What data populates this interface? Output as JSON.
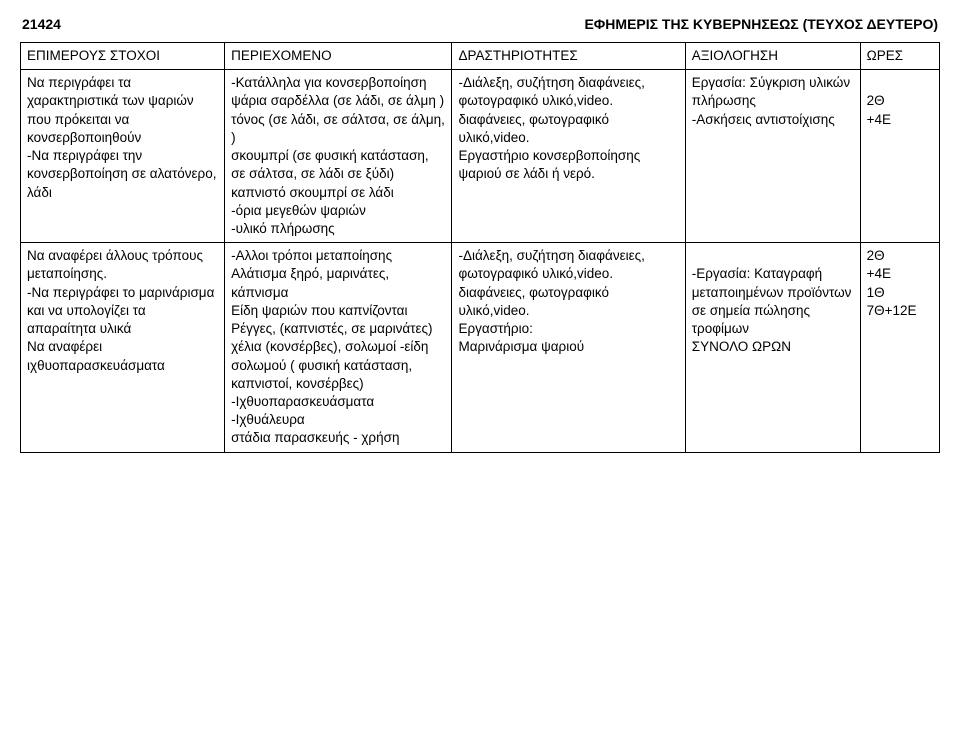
{
  "header": {
    "page_number": "21424",
    "title": "ΕΦΗΜΕΡΙΣ ΤΗΣ ΚΥΒΕΡΝΗΣΕΩΣ (ΤΕΥΧΟΣ ΔΕΥΤΕΡΟ)"
  },
  "table": {
    "columns": [
      "ΕΠΙΜΕΡΟΥΣ ΣΤΟΧΟΙ",
      "ΠΕΡΙΕΧΟΜΕΝΟ",
      "ΔΡΑΣΤΗΡΙΟΤΗΤΕΣ",
      "ΑΞΙΟΛΟΓΗΣΗ",
      "ΩΡΕΣ"
    ],
    "rows": [
      {
        "goals": "Να περιγράφει τα χαρακτηριστικά των ψαριών που πρόκειται να κονσερβοποιηθούν\n-Να περιγράφει την κονσερβοποίηση σε αλατόνερο, λάδι",
        "content": "-Κατάλληλα για κονσερβοποίηση ψάρια σαρδέλλα (σε λάδι, σε άλμη )\nτόνος (σε λάδι, σε σάλτσα, σε άλμη, )\nσκουμπρί (σε φυσική κατάσταση, σε σάλτσα, σε λάδι σε ξύδι)\nκαπνιστό σκουμπρί σε λάδι\n-όρια μεγεθών ψαριών\n-υλικό πλήρωσης",
        "activities": "-Διάλεξη, συζήτηση διαφάνειες, φωτογραφικό υλικό,video.\nδιαφάνειες, φωτογραφικό υλικό,video.\nΕργαστήριο κονσερβοποίησης ψαριού σε λάδι ή νερό.",
        "assessment": "Εργασία: Σύγκριση υλικών πλήρωσης\n-Ασκήσεις αντιστοίχισης",
        "hours": "\n2Θ\n+4Ε"
      },
      {
        "goals": "Να αναφέρει άλλους τρόπους μεταποίησης.\n-Να περιγράφει το μαρινάρισμα και να υπολογίζει τα απαραίτητα υλικά\nΝα αναφέρει ιχθυοπαρασκευάσματα",
        "content": "-Αλλοι τρόποι μεταποίησης\nΑλάτισμα ξηρό, μαρινάτες, κάπνισμα\nΕίδη ψαριών που καπνίζονται\nΡέγγες, (καπνιστές, σε μαρινάτες)\nχέλια (κονσέρβες), σολωμοί -είδη σολωμού ( φυσική κατάσταση, καπνιστοί, κονσέρβες)\n-Ιχθυοπαρασκευάσματα\n-Ιχθυάλευρα\nστάδια παρασκευής - χρήση",
        "activities": "-Διάλεξη, συζήτηση διαφάνειες, φωτογραφικό υλικό,video.\nδιαφάνειες, φωτογραφικό υλικό,video.\nΕργαστήριο:\nΜαρινάρισμα ψαριού",
        "assessment": "\n-Εργασία: Καταγραφή μεταποιημένων προϊόντων σε σημεία πώλησης τροφίμων\nΣΥΝΟΛΟ ΩΡΩΝ",
        "hours": "2Θ\n+4Ε\n1Θ\n7Θ+12Ε"
      }
    ]
  }
}
